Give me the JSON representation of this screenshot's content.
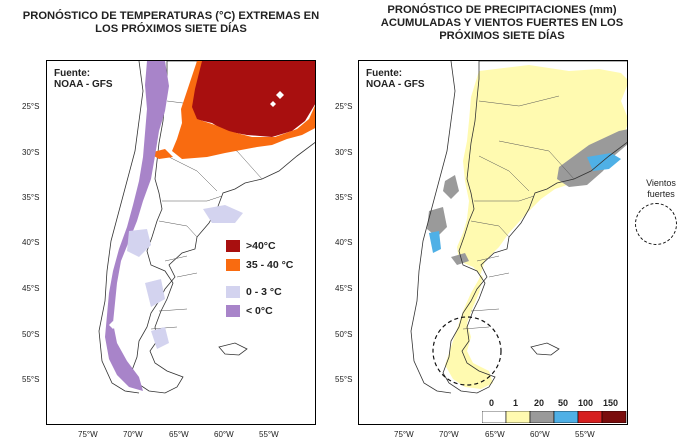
{
  "left_panel": {
    "title": "PRONÓSTICO DE TEMPERATURAS (°C) EXTREMAS EN LOS PRÓXIMOS SIETE DÍAS",
    "source": "Fuente:\nNOAA - GFS",
    "legend": [
      {
        "label": ">40°C",
        "color": "#a80f0f"
      },
      {
        "label": "35 - 40 °C",
        "color": "#f96b10"
      },
      {
        "label": "0 - 3 °C",
        "color": "#d3d3ef"
      },
      {
        "label": "< 0°C",
        "color": "#a884c9"
      }
    ]
  },
  "right_panel": {
    "title": "PRONÓSTICO DE PRECIPITACIONES (mm) ACUMULADAS Y VIENTOS FUERTES EN LOS PRÓXIMOS SIETE DÍAS",
    "source": "Fuente:\nNOAA - GFS",
    "colorbar": {
      "ticks": [
        "0",
        "1",
        "20",
        "50",
        "100",
        "150"
      ],
      "colors": [
        "#ffffff",
        "#fffab0",
        "#9a9a9a",
        "#4fb0e6",
        "#d62020",
        "#7a0c0c"
      ]
    },
    "wind_legend": {
      "label": "Vientos fuertes"
    }
  },
  "axes": {
    "lat_labels": [
      "25°S",
      "30°S",
      "35°S",
      "40°S",
      "45°S",
      "50°S",
      "55°S"
    ],
    "lon_labels": [
      "75°W",
      "70°W",
      "65°W",
      "60°W",
      "55°W"
    ]
  }
}
